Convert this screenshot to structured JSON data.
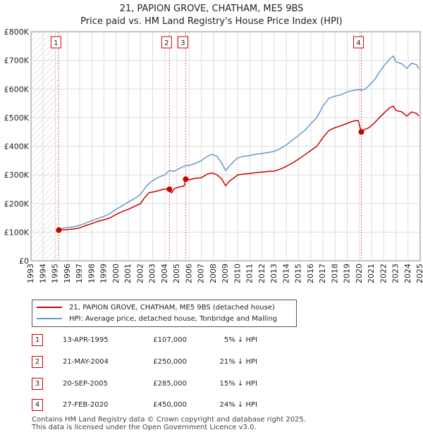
{
  "title_line1": "21, PAPION GROVE, CHATHAM, ME5 9BS",
  "title_line2": "Price paid vs. HM Land Registry's House Price Index (HPI)",
  "chart_data": {
    "type": "line",
    "xlim": [
      1993,
      2025
    ],
    "ylim": [
      0,
      800000
    ],
    "y_ticks": [
      0,
      100000,
      200000,
      300000,
      400000,
      500000,
      600000,
      700000,
      800000
    ],
    "y_tick_labels": [
      "£0",
      "£100K",
      "£200K",
      "£300K",
      "£400K",
      "£500K",
      "£600K",
      "£700K",
      "£800K"
    ],
    "x_ticks": [
      1993,
      1994,
      1995,
      1996,
      1997,
      1998,
      1999,
      2000,
      2001,
      2002,
      2003,
      2004,
      2005,
      2006,
      2007,
      2008,
      2009,
      2010,
      2011,
      2012,
      2013,
      2014,
      2015,
      2016,
      2017,
      2018,
      2019,
      2020,
      2021,
      2022,
      2023,
      2024,
      2025
    ],
    "hatched_until": 1995.28,
    "series": [
      {
        "name": "21, PAPION GROVE, CHATHAM, ME5 9BS (detached house)",
        "color": "#cc0000",
        "points": [
          [
            1995.28,
            107000
          ],
          [
            1995.6,
            108000
          ],
          [
            1996.0,
            109000
          ],
          [
            1996.5,
            111000
          ],
          [
            1997.0,
            115000
          ],
          [
            1997.5,
            123000
          ],
          [
            1998.0,
            130000
          ],
          [
            1998.5,
            138000
          ],
          [
            1999.0,
            143000
          ],
          [
            1999.5,
            150000
          ],
          [
            2000.0,
            162000
          ],
          [
            2000.5,
            172000
          ],
          [
            2001.0,
            180000
          ],
          [
            2001.5,
            190000
          ],
          [
            2002.0,
            200000
          ],
          [
            2002.3,
            218000
          ],
          [
            2002.7,
            238000
          ],
          [
            2003.0,
            240000
          ],
          [
            2003.5,
            245000
          ],
          [
            2003.9,
            250000
          ],
          [
            2004.38,
            250000
          ],
          [
            2004.55,
            237000
          ],
          [
            2004.8,
            252000
          ],
          [
            2005.2,
            258000
          ],
          [
            2005.6,
            262000
          ],
          [
            2005.72,
            285000
          ],
          [
            2006.0,
            283000
          ],
          [
            2006.5,
            288000
          ],
          [
            2007.0,
            290000
          ],
          [
            2007.5,
            303000
          ],
          [
            2007.9,
            307000
          ],
          [
            2008.3,
            300000
          ],
          [
            2008.7,
            285000
          ],
          [
            2009.0,
            262000
          ],
          [
            2009.3,
            278000
          ],
          [
            2009.7,
            290000
          ],
          [
            2010.0,
            300000
          ],
          [
            2010.5,
            303000
          ],
          [
            2011.0,
            305000
          ],
          [
            2011.5,
            308000
          ],
          [
            2012.0,
            310000
          ],
          [
            2012.5,
            312000
          ],
          [
            2013.0,
            313000
          ],
          [
            2013.5,
            320000
          ],
          [
            2014.0,
            330000
          ],
          [
            2014.5,
            342000
          ],
          [
            2015.0,
            355000
          ],
          [
            2015.5,
            370000
          ],
          [
            2016.0,
            385000
          ],
          [
            2016.5,
            400000
          ],
          [
            2017.0,
            430000
          ],
          [
            2017.5,
            455000
          ],
          [
            2018.0,
            465000
          ],
          [
            2018.5,
            472000
          ],
          [
            2019.0,
            480000
          ],
          [
            2019.5,
            488000
          ],
          [
            2019.9,
            490000
          ],
          [
            2020.16,
            450000
          ],
          [
            2020.4,
            458000
          ],
          [
            2020.8,
            465000
          ],
          [
            2021.2,
            480000
          ],
          [
            2021.6,
            498000
          ],
          [
            2022.0,
            515000
          ],
          [
            2022.5,
            535000
          ],
          [
            2022.8,
            540000
          ],
          [
            2023.0,
            525000
          ],
          [
            2023.5,
            520000
          ],
          [
            2023.9,
            505000
          ],
          [
            2024.3,
            520000
          ],
          [
            2024.7,
            515000
          ],
          [
            2024.9,
            505000
          ]
        ]
      },
      {
        "name": "HPI: Average price, detached house, Tonbridge and Malling",
        "color": "#6699cc",
        "points": [
          [
            1995.28,
            113000
          ],
          [
            1995.6,
            114000
          ],
          [
            1996.0,
            116000
          ],
          [
            1996.5,
            119000
          ],
          [
            1997.0,
            124000
          ],
          [
            1997.5,
            132000
          ],
          [
            1998.0,
            140000
          ],
          [
            1998.5,
            148000
          ],
          [
            1999.0,
            155000
          ],
          [
            1999.5,
            165000
          ],
          [
            2000.0,
            180000
          ],
          [
            2000.5,
            192000
          ],
          [
            2001.0,
            205000
          ],
          [
            2001.5,
            217000
          ],
          [
            2002.0,
            232000
          ],
          [
            2002.5,
            262000
          ],
          [
            2003.0,
            280000
          ],
          [
            2003.5,
            292000
          ],
          [
            2004.0,
            300000
          ],
          [
            2004.38,
            316000
          ],
          [
            2004.7,
            312000
          ],
          [
            2005.0,
            318000
          ],
          [
            2005.72,
            333000
          ],
          [
            2006.0,
            333000
          ],
          [
            2006.5,
            340000
          ],
          [
            2007.0,
            350000
          ],
          [
            2007.5,
            365000
          ],
          [
            2007.9,
            372000
          ],
          [
            2008.3,
            365000
          ],
          [
            2008.7,
            340000
          ],
          [
            2009.0,
            315000
          ],
          [
            2009.3,
            330000
          ],
          [
            2009.7,
            348000
          ],
          [
            2010.0,
            360000
          ],
          [
            2010.5,
            365000
          ],
          [
            2011.0,
            368000
          ],
          [
            2011.5,
            372000
          ],
          [
            2012.0,
            375000
          ],
          [
            2012.5,
            378000
          ],
          [
            2013.0,
            382000
          ],
          [
            2013.5,
            392000
          ],
          [
            2014.0,
            405000
          ],
          [
            2014.5,
            422000
          ],
          [
            2015.0,
            438000
          ],
          [
            2015.5,
            455000
          ],
          [
            2016.0,
            478000
          ],
          [
            2016.5,
            500000
          ],
          [
            2017.0,
            540000
          ],
          [
            2017.5,
            568000
          ],
          [
            2018.0,
            575000
          ],
          [
            2018.5,
            580000
          ],
          [
            2019.0,
            590000
          ],
          [
            2019.5,
            595000
          ],
          [
            2020.0,
            598000
          ],
          [
            2020.16,
            596000
          ],
          [
            2020.5,
            600000
          ],
          [
            2020.8,
            612000
          ],
          [
            2021.2,
            630000
          ],
          [
            2021.6,
            655000
          ],
          [
            2022.0,
            680000
          ],
          [
            2022.5,
            705000
          ],
          [
            2022.8,
            715000
          ],
          [
            2023.0,
            695000
          ],
          [
            2023.5,
            688000
          ],
          [
            2023.9,
            672000
          ],
          [
            2024.3,
            690000
          ],
          [
            2024.7,
            685000
          ],
          [
            2024.9,
            670000
          ]
        ]
      }
    ],
    "sales": [
      {
        "label": "1",
        "x": 1995.28,
        "y": 107000
      },
      {
        "label": "2",
        "x": 2004.38,
        "y": 250000
      },
      {
        "label": "3",
        "x": 2005.72,
        "y": 285000
      },
      {
        "label": "4",
        "x": 2020.16,
        "y": 450000
      }
    ]
  },
  "legend": {
    "property": "21, PAPION GROVE, CHATHAM, ME5 9BS (detached house)",
    "hpi": "HPI: Average price, detached house, Tonbridge and Malling"
  },
  "transactions": [
    {
      "num": "1",
      "date": "13-APR-1995",
      "price": "£107,000",
      "diff": "5% ↓ HPI"
    },
    {
      "num": "2",
      "date": "21-MAY-2004",
      "price": "£250,000",
      "diff": "21% ↓ HPI"
    },
    {
      "num": "3",
      "date": "20-SEP-2005",
      "price": "£285,000",
      "diff": "15% ↓ HPI"
    },
    {
      "num": "4",
      "date": "27-FEB-2020",
      "price": "£450,000",
      "diff": "24% ↓ HPI"
    }
  ],
  "footer_line1": "Contains HM Land Registry data © Crown copyright and database right 2025.",
  "footer_line2": "This data is licensed under the Open Government Licence v3.0.",
  "colors": {
    "property": "#cc0000",
    "hpi": "#6699cc",
    "grid": "#dddddd",
    "marker_border": "#cc0000"
  }
}
